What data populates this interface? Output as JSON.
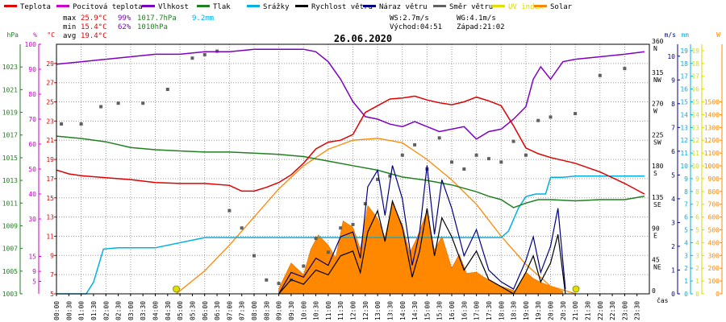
{
  "colors": {
    "teplota": "#e00000",
    "pocitova": "#cc00cc",
    "vlhkost": "#7f00c0",
    "tlak": "#208020",
    "srazky": "#00b0e0",
    "rychlost": "#000000",
    "naraz": "#000080",
    "smer": "#606060",
    "uv": "#e0e000",
    "solar": "#ff8800",
    "grid": "#9a9a9a"
  },
  "legend": [
    {
      "label": "Teplota",
      "color": "#e00000"
    },
    {
      "label": "Pocitová teplota",
      "color": "#cc00cc"
    },
    {
      "label": "Vlhkost",
      "color": "#7f00c0"
    },
    {
      "label": "Tlak",
      "color": "#208020"
    },
    {
      "label": "Srážky",
      "color": "#00b0e0"
    },
    {
      "label": "Rychlost větru",
      "color": "#000000"
    },
    {
      "label": "Náraz větru",
      "color": "#000080"
    },
    {
      "label": "Směr větru",
      "color": "#606060"
    },
    {
      "label": "UV index",
      "color": "#e0e000"
    },
    {
      "label": "Solar",
      "color": "#ff8800"
    }
  ],
  "stats": {
    "max_label": "max",
    "max_temp": "25.9°C",
    "max_hum": "99%",
    "max_press": "1017.7hPa",
    "rain": "9.2mm",
    "min_label": "min",
    "min_temp": "15.4°C",
    "min_hum": "62%",
    "min_press": "1010hPa",
    "avg_label": "avg",
    "avg_temp": "19.4°C",
    "ws": "WS:2.7m/s",
    "wg": "WG:4.1m/s",
    "sunrise": "Východ:04:51",
    "sunset": "Západ:21:02"
  },
  "chart_data": {
    "type": "line",
    "title": "26.06.2020",
    "xlabel": "čas",
    "x_ticks": [
      "00:00",
      "00:30",
      "01:00",
      "01:30",
      "02:00",
      "02:30",
      "03:00",
      "03:30",
      "04:00",
      "04:30",
      "05:00",
      "05:30",
      "06:00",
      "06:30",
      "07:00",
      "07:30",
      "08:00",
      "08:30",
      "09:00",
      "09:30",
      "10:00",
      "10:30",
      "11:00",
      "11:30",
      "12:00",
      "12:30",
      "13:00",
      "13:30",
      "14:00",
      "14:30",
      "15:00",
      "15:30",
      "16:00",
      "16:30",
      "17:00",
      "17:30",
      "18:00",
      "18:30",
      "19:00",
      "19:30",
      "20:00",
      "20:30",
      "21:00",
      "21:30",
      "22:00",
      "22:30",
      "23:00",
      "23:30"
    ],
    "axes": {
      "hpa": {
        "label": "hPa",
        "ticks": [
          "1003",
          "1005",
          "1007",
          "1009",
          "1011",
          "1013",
          "1015",
          "1017",
          "1019",
          "1021",
          "1023"
        ],
        "range": [
          1003,
          1025
        ]
      },
      "pct": {
        "label": "%",
        "ticks": [
          "5",
          "9",
          "15",
          "30",
          "40",
          "50",
          "60",
          "70",
          "80",
          "90",
          "100"
        ],
        "range": [
          0,
          100
        ]
      },
      "degc": {
        "label": "°C",
        "ticks": [
          "5",
          "7",
          "9",
          "11",
          "13",
          "15",
          "17",
          "19",
          "21",
          "23",
          "25",
          "27",
          "29"
        ],
        "range": [
          5,
          31
        ]
      },
      "dir": {
        "label": "",
        "ticks": [
          "0",
          "45 NE",
          "90 E",
          "135 SE",
          "180 S",
          "225 SW",
          "270 W",
          "315 NW",
          "360 N"
        ],
        "range": [
          0,
          360
        ]
      },
      "ms": {
        "label": "m/s",
        "ticks": [
          "0",
          "1",
          "2",
          "3",
          "4",
          "5",
          "6",
          "7",
          "8",
          "9",
          "10"
        ],
        "range": [
          0,
          10.5
        ]
      },
      "mm": {
        "label": "mm",
        "ticks": [
          "0",
          "1",
          "2",
          "3",
          "4",
          "5",
          "6",
          "7",
          "8",
          "9",
          "10",
          "11",
          "12",
          "13",
          "14",
          "15",
          "16",
          "17",
          "18",
          "19"
        ],
        "range": [
          0,
          19.5
        ]
      },
      "uv": {
        "label": "",
        "ticks": [
          "0",
          "1",
          "2",
          "3",
          "4",
          "5",
          "6",
          "7",
          "8",
          "9",
          "10",
          "11",
          "12",
          "13",
          "14",
          "15",
          "16",
          "17",
          "18",
          "19"
        ],
        "range": [
          0,
          19.5
        ]
      },
      "w": {
        "label": "W",
        "ticks": [
          "0",
          "100",
          "200",
          "300",
          "400",
          "500",
          "600",
          "700",
          "800",
          "900",
          "1000",
          "1100",
          "1200",
          "1300",
          "1400",
          "1500"
        ],
        "range": [
          0,
          1950
        ]
      }
    },
    "series": [
      {
        "name": "Teplota",
        "axis": "degc",
        "x": [
          0,
          0.5,
          1,
          2,
          3,
          4,
          5,
          6,
          7,
          7.5,
          8,
          8.5,
          9,
          9.5,
          10,
          10.5,
          11,
          11.5,
          12,
          12.5,
          13,
          13.5,
          14,
          14.5,
          15,
          15.5,
          16,
          16.5,
          17,
          17.5,
          18,
          18.5,
          19,
          19.5,
          20,
          21,
          22,
          23,
          23.8
        ],
        "values": [
          17.9,
          17.5,
          17.3,
          17.1,
          16.9,
          16.6,
          16.5,
          16.5,
          16.3,
          15.7,
          15.7,
          16.1,
          16.6,
          17.4,
          18.6,
          20.1,
          20.8,
          21.0,
          21.6,
          23.9,
          24.6,
          25.3,
          25.4,
          25.6,
          25.2,
          24.9,
          24.7,
          25.0,
          25.5,
          25.1,
          24.6,
          22.5,
          20.2,
          19.6,
          19.2,
          18.6,
          17.7,
          16.5,
          15.4
        ]
      },
      {
        "name": "Vlhkost",
        "axis": "pct",
        "x": [
          0,
          1,
          2,
          3,
          4,
          5,
          6,
          7,
          8,
          9,
          10,
          10.5,
          11,
          11.5,
          12,
          12.5,
          13,
          13.5,
          14,
          14.5,
          15,
          15.5,
          16,
          16.5,
          17,
          17.5,
          18,
          18.5,
          19,
          19.3,
          19.6,
          20,
          20.5,
          21,
          22,
          23,
          23.8
        ],
        "values": [
          92,
          93,
          94,
          95,
          96,
          96,
          97,
          97,
          98,
          98,
          98,
          97,
          93,
          86,
          77,
          71,
          70,
          68,
          67,
          69,
          67,
          65,
          66,
          67,
          62,
          65,
          66,
          70,
          75,
          86,
          91,
          86,
          93,
          94,
          95,
          96,
          97
        ]
      },
      {
        "name": "Tlak",
        "axis": "hpa",
        "x": [
          0,
          1,
          2,
          3,
          4,
          5,
          6,
          7,
          8,
          9,
          10,
          11,
          12,
          13,
          14,
          15,
          16,
          17,
          17.5,
          18,
          18.5,
          19,
          19.5,
          20,
          21,
          22,
          23,
          23.8
        ],
        "values": [
          1016.9,
          1016.7,
          1016.4,
          1015.9,
          1015.7,
          1015.6,
          1015.5,
          1015.5,
          1015.4,
          1015.3,
          1015.1,
          1014.7,
          1014.3,
          1013.9,
          1013.3,
          1013.0,
          1012.6,
          1012.0,
          1011.6,
          1011.3,
          1010.6,
          1011.0,
          1011.3,
          1011.3,
          1011.2,
          1011.3,
          1011.3,
          1011.6
        ]
      },
      {
        "name": "Srážky",
        "axis": "mm",
        "x": [
          0,
          1.2,
          1.5,
          1.9,
          2.5,
          3,
          4,
          6,
          7,
          8,
          9,
          10,
          11,
          12,
          13,
          14,
          15,
          16,
          17,
          18,
          18.3,
          18.7,
          19,
          19.4,
          19.8,
          20,
          20.5,
          21,
          22,
          23,
          23.8
        ],
        "values": [
          0,
          0,
          0.9,
          3.5,
          3.6,
          3.6,
          3.6,
          4.4,
          4.4,
          4.4,
          4.4,
          4.4,
          4.4,
          4.4,
          4.4,
          4.4,
          4.4,
          4.4,
          4.4,
          4.4,
          4.9,
          6.7,
          7.6,
          7.8,
          7.8,
          9.1,
          9.1,
          9.2,
          9.2,
          9.2,
          9.2
        ]
      },
      {
        "name": "Solar",
        "axis": "w",
        "x": [
          4.85,
          6,
          7,
          8,
          9,
          10,
          11,
          12,
          13,
          14,
          15,
          16,
          17,
          18,
          19,
          20,
          21.03
        ],
        "values": [
          0,
          180,
          380,
          600,
          820,
          1000,
          1130,
          1200,
          1215,
          1180,
          1050,
          890,
          700,
          450,
          230,
          60,
          0
        ]
      },
      {
        "name": "Rychlost větru",
        "axis": "ms",
        "x": [
          9,
          9.5,
          10,
          10.5,
          11,
          11.5,
          12,
          12.3,
          12.6,
          13,
          13.3,
          13.6,
          14,
          14.4,
          14.7,
          15,
          15.3,
          15.6,
          16,
          16.5,
          17,
          17.5,
          18,
          18.5,
          19,
          19.3,
          19.6,
          20,
          20.3,
          20.6
        ],
        "values": [
          0,
          0.6,
          0.4,
          1.0,
          0.8,
          1.6,
          1.8,
          0.9,
          2.6,
          3.5,
          2.2,
          3.9,
          2.8,
          0.7,
          1.8,
          3.6,
          1.6,
          3.2,
          2.4,
          1.0,
          1.8,
          0.6,
          0.3,
          0,
          0.9,
          1.6,
          0.5,
          1.3,
          2.5,
          0
        ]
      },
      {
        "name": "Náraz větru",
        "axis": "ms",
        "x": [
          9,
          9.5,
          10,
          10.5,
          11,
          11.5,
          12,
          12.3,
          12.6,
          13,
          13.3,
          13.6,
          14,
          14.4,
          14.7,
          15,
          15.3,
          15.6,
          16,
          16.5,
          17,
          17.5,
          18,
          18.5,
          19,
          19.3,
          19.6,
          20,
          20.3,
          20.6
        ],
        "values": [
          0,
          0.9,
          0.7,
          1.5,
          1.2,
          2.4,
          2.6,
          1.5,
          4.5,
          5.2,
          3.3,
          5.4,
          4.0,
          1.2,
          2.6,
          5.4,
          2.5,
          4.8,
          3.6,
          1.6,
          2.7,
          1.0,
          0.5,
          0.2,
          1.4,
          2.4,
          0.9,
          2.0,
          3.6,
          0.2
        ]
      },
      {
        "name": "Směr větru",
        "axis": "dir",
        "x": [
          0.2,
          1,
          1.8,
          2.5,
          3.5,
          4.5,
          5.5,
          6,
          6.5,
          7,
          7.5,
          8,
          8.5,
          9,
          9.5,
          10,
          10.5,
          11,
          11.5,
          12,
          12.5,
          13,
          13.5,
          14,
          14.5,
          15,
          15.5,
          16,
          16.5,
          17,
          17.5,
          18,
          18.5,
          19,
          19.5,
          20,
          21,
          22,
          23
        ],
        "values": [
          245,
          245,
          270,
          275,
          275,
          295,
          340,
          345,
          350,
          120,
          95,
          55,
          20,
          15,
          20,
          40,
          80,
          60,
          95,
          100,
          130,
          165,
          170,
          200,
          215,
          180,
          225,
          190,
          180,
          200,
          195,
          190,
          220,
          200,
          250,
          255,
          260,
          315,
          325
        ]
      },
      {
        "name": "UV index",
        "axis": "uv",
        "x": [
          4.85,
          21.03
        ],
        "values": [
          0,
          0
        ]
      }
    ],
    "rain_intensity": {
      "axis": "uv",
      "x": [
        9,
        9.5,
        10,
        10.3,
        10.6,
        11,
        11.3,
        11.6,
        12,
        12.3,
        12.6,
        13,
        13.3,
        13.6,
        14,
        14.3,
        14.6,
        15,
        15.3,
        15.6,
        16,
        16.3,
        16.6,
        17,
        17.3,
        17.6,
        18,
        18.3,
        18.6,
        19,
        19.3,
        19.6,
        20,
        20.5
      ],
      "values": [
        0.4,
        2.4,
        1.5,
        3.5,
        4.6,
        3.8,
        2.8,
        5.7,
        5.2,
        3.5,
        6.9,
        5.9,
        4.4,
        7.1,
        5.4,
        3.2,
        4.4,
        6.5,
        3.4,
        4.5,
        2.0,
        3.1,
        1.6,
        1.7,
        1.3,
        1.0,
        0.6,
        0.4,
        0.2,
        1.7,
        1.2,
        0.9,
        0.6,
        0.2
      ]
    }
  }
}
